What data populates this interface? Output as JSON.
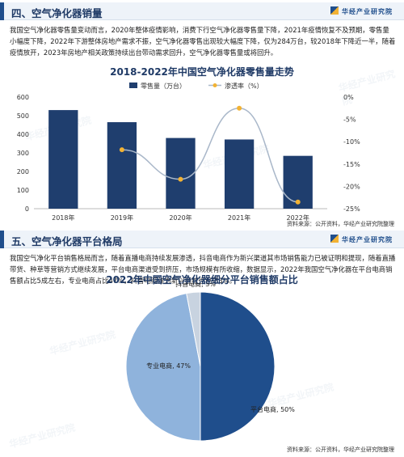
{
  "section4": {
    "title": "四、空气净化器销量",
    "brand": "华经产业研究院",
    "paragraph": "我国空气净化器零售量变动而言，2020年整体疫情影响，消费下行空气净化器零售量下降，2021年疫情恢复不及预期，零售量小幅度下降，2022年下游整体房地产需求不振，空气净化器零售出现较大幅度下降，仅为284万台，较2018年下降近一半，随着疫情放开，2023年房地产相关政策持续出台带动需求回升，空气净化器零售量或将回升。"
  },
  "chart1": {
    "title": "2018-2022年中国空气净化器零售量走势",
    "source": "资料来源：公开资料，华经产业研究院整理"
  },
  "section5": {
    "title": "五、空气净化器平台格局",
    "brand": "华经产业研究院",
    "paragraph": "我国空气净化平台销售格局而言，随着直播电商持续发展渗透，抖音电商作为新兴渠道其市场销售能力已被证明和提现，随着直播带货、种草等营销方式继续发展，平台电商渠道受到挤压，市场规模有所收缩，数据显示，2022年我国空气净化器在平台电商销售额占比5成左右，专业电商占比47%，抖音电商作为新兴领域也已达3%。"
  },
  "chart2": {
    "title": "2022年中国空气净化器细分平台销售额占比",
    "source": "资料来源：公开资料，华经产业研究院整理"
  },
  "watermarks": [
    "华经产业研究院",
    "华经产业研究院",
    "华经产业研究院",
    "华经产业研究院",
    "华经产业研究院",
    "华经产业研究院"
  ],
  "colors": {
    "bar": "#1f3e6e",
    "line": "#a9b7c9",
    "marker": "#f2b233",
    "pie_platform": "#1f4e8c",
    "pie_pro": "#8fb3dc",
    "pie_douyin": "#c8d3e0"
  },
  "chart_data": [
    {
      "type": "bar+line",
      "categories": [
        "2018年",
        "2019年",
        "2020年",
        "2021年",
        "2022年"
      ],
      "series": [
        {
          "name": "零售量（万台）",
          "type": "bar",
          "axis": "left",
          "values": [
            530,
            465,
            380,
            372,
            284
          ]
        },
        {
          "name": "渗透率（%）",
          "type": "line",
          "axis": "right",
          "values": [
            null,
            -11.8,
            -18.4,
            -2.5,
            -23.5
          ]
        }
      ],
      "left_axis": {
        "min": 0,
        "max": 600,
        "ticks": [
          "0",
          "100",
          "200",
          "300",
          "400",
          "500",
          "600"
        ]
      },
      "right_axis": {
        "min": -25,
        "max": 0,
        "ticks": [
          "0%",
          "-5%",
          "-10%",
          "-15%",
          "-20%",
          "-25%"
        ]
      },
      "legend": "top-center",
      "grid": false
    },
    {
      "type": "pie",
      "slices": [
        {
          "label": "平台电商, 50%",
          "value": 50
        },
        {
          "label": "专业电商, 47%",
          "value": 47
        },
        {
          "label": "抖音电商, 3%",
          "value": 3
        }
      ]
    }
  ]
}
